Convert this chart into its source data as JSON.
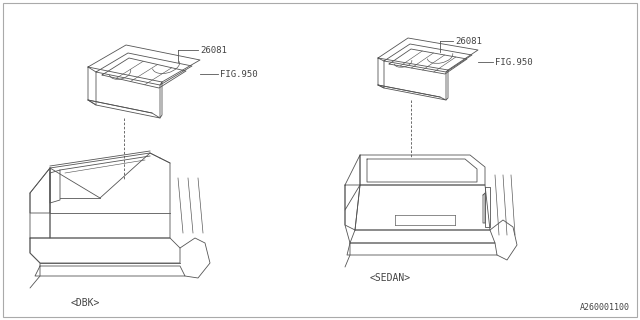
{
  "background_color": "#ffffff",
  "border_color": "#aaaaaa",
  "line_color": "#555555",
  "text_color": "#444444",
  "part_number": "26081",
  "fig_ref": "FIG.950",
  "label_dbk": "<DBK>",
  "label_sedan": "<SEDAN>",
  "diagram_id": "A260001100",
  "fig_fontsize": 6.5,
  "label_fontsize": 7,
  "partnum_fontsize": 6.5,
  "id_fontsize": 6
}
